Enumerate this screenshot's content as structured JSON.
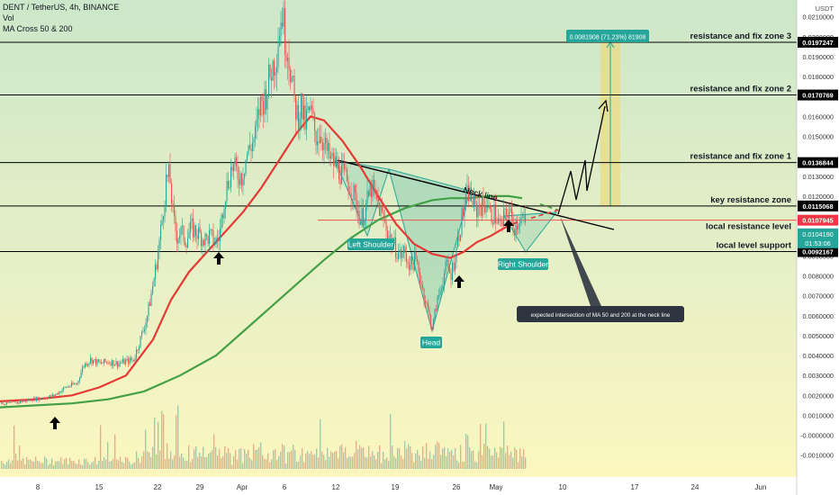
{
  "legend": {
    "symbol": "DENT / TetherUS, 4h, BINANCE",
    "volume": "Vol",
    "indicator": "MA Cross 50 & 200"
  },
  "axis_currency": "USDT",
  "colors": {
    "background_top": "#cfe8c9",
    "background_bottom": "#fbf6c0",
    "candle_up": "#26a69a",
    "candle_down": "#ef5350",
    "ma50": "#e53935",
    "ma200": "#43a047",
    "level_line": "#000000",
    "badge_red": "#f23645",
    "badge_teal": "#26a69a"
  },
  "chart_data": {
    "type": "candlestick",
    "x_ticks": [
      "8",
      "15",
      "22",
      "29",
      "Apr",
      "6",
      "12",
      "19",
      "26",
      "May",
      "10",
      "17",
      "24",
      "Jun"
    ],
    "y_ticks": [
      "0.0210000",
      "0.0200000",
      "0.0190000",
      "0.0180000",
      "0.0160000",
      "0.0150000",
      "0.0130000",
      "0.0120000",
      "0.0100000",
      "0.0090000",
      "0.0080000",
      "0.0070000",
      "0.0060000",
      "0.0050000",
      "0.0040000",
      "0.0030000",
      "0.0020000",
      "0.0010000",
      "-0.0000000",
      "-0.0010000"
    ],
    "ylim": [
      -0.0016,
      0.0218
    ],
    "levels": [
      {
        "label": "resistance and fix  zone 3",
        "value": "0.0197247",
        "price": 0.0197247
      },
      {
        "label": "resistance and fix  zone 2",
        "value": "0.0170769",
        "price": 0.0170769
      },
      {
        "label": "resistance and fix  zone 1",
        "value": "0.0136844",
        "price": 0.0136844
      },
      {
        "label": "key resistance zone",
        "value": "0.0115068",
        "price": 0.0115068
      },
      {
        "label": "local resistance level",
        "value": "0.0107945",
        "price": 0.0107945
      },
      {
        "label": "local level support",
        "value": "0.0092167",
        "price": 0.0092167
      }
    ],
    "current_price": {
      "value": "0.0104190",
      "countdown": "01:53:06"
    },
    "target_label": "0.0081908 (71.23%) 81908",
    "pattern_labels": {
      "left_shoulder": "Left Shoulder",
      "head": "Head",
      "right_shoulder": "Right Shoulder",
      "neckline": "Neck line"
    },
    "annotation": "expected intersection of MA 50 and 200 at the neck line",
    "close_path": [
      [
        0,
        0.0016
      ],
      [
        12,
        0.0016
      ],
      [
        25,
        0.0017
      ],
      [
        35,
        0.0018
      ],
      [
        50,
        0.0019
      ],
      [
        60,
        0.002
      ],
      [
        72,
        0.0024
      ],
      [
        85,
        0.0026
      ],
      [
        92,
        0.0035
      ],
      [
        100,
        0.0038
      ],
      [
        110,
        0.0036
      ],
      [
        120,
        0.0037
      ],
      [
        130,
        0.0036
      ],
      [
        140,
        0.0037
      ],
      [
        148,
        0.0038
      ],
      [
        153,
        0.0045
      ],
      [
        158,
        0.0052
      ],
      [
        163,
        0.006
      ],
      [
        168,
        0.0072
      ],
      [
        172,
        0.0083
      ],
      [
        176,
        0.0095
      ],
      [
        180,
        0.011
      ],
      [
        184,
        0.0128
      ],
      [
        188,
        0.013
      ],
      [
        192,
        0.0108
      ],
      [
        196,
        0.01
      ],
      [
        200,
        0.0102
      ],
      [
        206,
        0.0098
      ],
      [
        212,
        0.0104
      ],
      [
        220,
        0.0101
      ],
      [
        228,
        0.0098
      ],
      [
        232,
        0.01
      ],
      [
        238,
        0.0097
      ],
      [
        243,
        0.0099
      ],
      [
        248,
        0.0118
      ],
      [
        252,
        0.0126
      ],
      [
        257,
        0.0135
      ],
      [
        262,
        0.0132
      ],
      [
        268,
        0.013
      ],
      [
        273,
        0.014
      ],
      [
        278,
        0.0145
      ],
      [
        283,
        0.015
      ],
      [
        288,
        0.0165
      ],
      [
        294,
        0.017
      ],
      [
        298,
        0.0178
      ],
      [
        302,
        0.0185
      ],
      [
        306,
        0.019
      ],
      [
        310,
        0.0205
      ],
      [
        313,
        0.0212
      ],
      [
        316,
        0.02
      ],
      [
        320,
        0.0192
      ],
      [
        323,
        0.018
      ],
      [
        326,
        0.0168
      ],
      [
        330,
        0.016
      ],
      [
        334,
        0.0166
      ],
      [
        338,
        0.0155
      ],
      [
        342,
        0.0162
      ],
      [
        346,
        0.016
      ],
      [
        350,
        0.015
      ],
      [
        356,
        0.0152
      ],
      [
        360,
        0.0145
      ],
      [
        366,
        0.0138
      ],
      [
        372,
        0.0136
      ],
      [
        378,
        0.0132
      ],
      [
        384,
        0.0128
      ],
      [
        390,
        0.0124
      ],
      [
        396,
        0.0115
      ],
      [
        400,
        0.0108
      ],
      [
        404,
        0.0112
      ],
      [
        408,
        0.0118
      ],
      [
        412,
        0.0124
      ],
      [
        416,
        0.012
      ],
      [
        420,
        0.0115
      ],
      [
        424,
        0.011
      ],
      [
        428,
        0.0105
      ],
      [
        432,
        0.01
      ],
      [
        436,
        0.0096
      ],
      [
        440,
        0.0093
      ],
      [
        444,
        0.009
      ],
      [
        448,
        0.0092
      ],
      [
        452,
        0.0088
      ],
      [
        456,
        0.0085
      ],
      [
        460,
        0.0088
      ],
      [
        464,
        0.0084
      ],
      [
        468,
        0.0075
      ],
      [
        472,
        0.0068
      ],
      [
        476,
        0.006
      ],
      [
        480,
        0.0054
      ],
      [
        484,
        0.0065
      ],
      [
        488,
        0.0072
      ],
      [
        492,
        0.008
      ],
      [
        496,
        0.0085
      ],
      [
        500,
        0.008
      ],
      [
        504,
        0.0088
      ],
      [
        508,
        0.0098
      ],
      [
        512,
        0.0108
      ],
      [
        516,
        0.0116
      ],
      [
        520,
        0.0122
      ],
      [
        524,
        0.0118
      ],
      [
        528,
        0.0112
      ],
      [
        532,
        0.0116
      ],
      [
        536,
        0.0114
      ],
      [
        540,
        0.0118
      ],
      [
        544,
        0.011
      ],
      [
        548,
        0.0112
      ],
      [
        552,
        0.0108
      ],
      [
        556,
        0.0104
      ],
      [
        560,
        0.011
      ],
      [
        564,
        0.0113
      ],
      [
        568,
        0.0108
      ],
      [
        572,
        0.0104
      ],
      [
        576,
        0.011
      ],
      [
        580,
        0.0108
      ],
      [
        584,
        0.0104
      ]
    ],
    "ma50_path": [
      [
        0,
        0.0017
      ],
      [
        40,
        0.0018
      ],
      [
        80,
        0.002
      ],
      [
        110,
        0.0024
      ],
      [
        140,
        0.003
      ],
      [
        170,
        0.0048
      ],
      [
        190,
        0.0068
      ],
      [
        210,
        0.0082
      ],
      [
        230,
        0.0092
      ],
      [
        250,
        0.0102
      ],
      [
        270,
        0.0112
      ],
      [
        290,
        0.0124
      ],
      [
        310,
        0.0138
      ],
      [
        330,
        0.0152
      ],
      [
        345,
        0.016
      ],
      [
        360,
        0.0158
      ],
      [
        380,
        0.0148
      ],
      [
        400,
        0.0135
      ],
      [
        420,
        0.012
      ],
      [
        440,
        0.0106
      ],
      [
        460,
        0.0096
      ],
      [
        480,
        0.0091
      ],
      [
        500,
        0.0089
      ],
      [
        515,
        0.0092
      ],
      [
        530,
        0.0097
      ],
      [
        545,
        0.01
      ],
      [
        560,
        0.0104
      ],
      [
        575,
        0.0107
      ],
      [
        590,
        0.0109
      ],
      [
        620,
        0.0113
      ]
    ],
    "ma200_path": [
      [
        0,
        0.0014
      ],
      [
        40,
        0.0015
      ],
      [
        80,
        0.0016
      ],
      [
        120,
        0.0018
      ],
      [
        160,
        0.0022
      ],
      [
        200,
        0.003
      ],
      [
        240,
        0.004
      ],
      [
        270,
        0.0052
      ],
      [
        300,
        0.0064
      ],
      [
        330,
        0.0076
      ],
      [
        360,
        0.0088
      ],
      [
        390,
        0.0099
      ],
      [
        420,
        0.0108
      ],
      [
        450,
        0.0114
      ],
      [
        480,
        0.0118
      ],
      [
        500,
        0.0119
      ],
      [
        520,
        0.0119
      ],
      [
        545,
        0.012
      ],
      [
        565,
        0.012
      ],
      [
        580,
        0.0119
      ],
      [
        600,
        0.0116
      ],
      [
        620,
        0.0113
      ]
    ]
  }
}
